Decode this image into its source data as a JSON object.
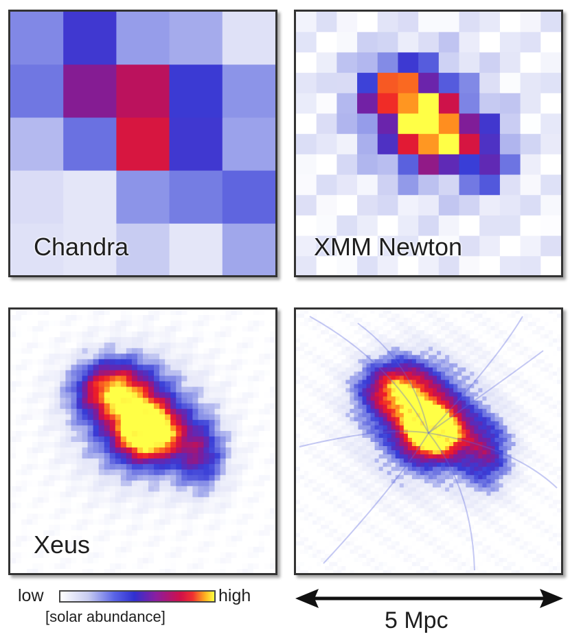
{
  "panels": {
    "chandra": {
      "label": "Chandra"
    },
    "xmm": {
      "label": "XMM Newton"
    },
    "xeus": {
      "label": "Xeus"
    },
    "model": {
      "label": ""
    }
  },
  "legend": {
    "low": "low",
    "high": "high",
    "caption": "[solar abundance]"
  },
  "scale": {
    "label": "5 Mpc"
  },
  "colors": {
    "low": "#ffffff",
    "mid": "#3030d0",
    "high_red": "#e01030",
    "peak": "#ffff40",
    "frame": "#333333"
  }
}
